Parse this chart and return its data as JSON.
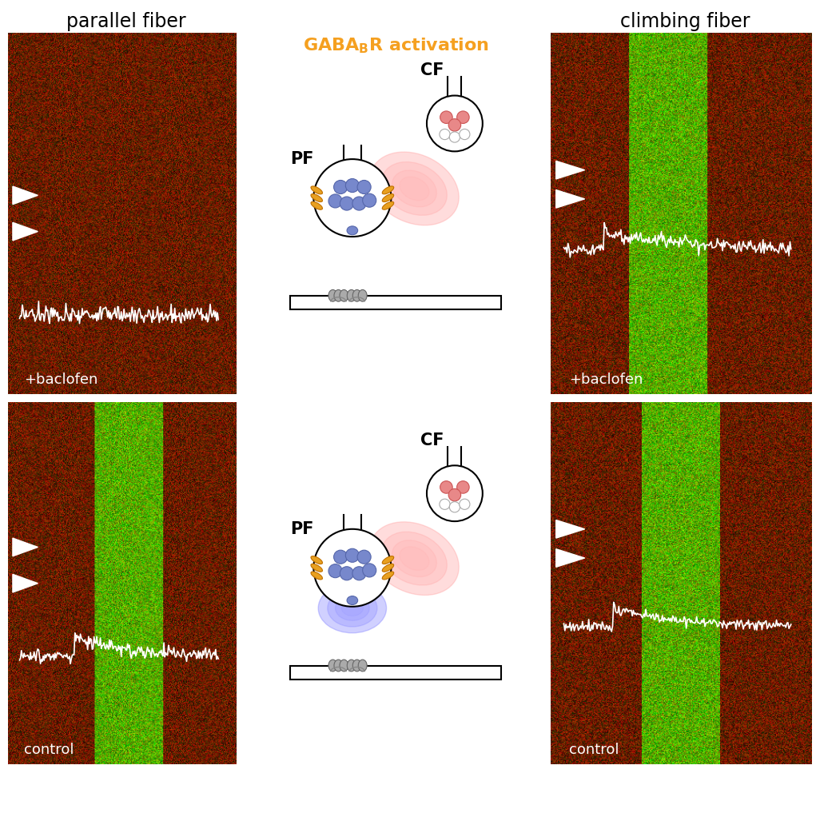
{
  "title_left": "parallel fiber",
  "title_right": "climbing fiber",
  "label_control": "control",
  "label_baclofen": "+baclofen",
  "text_color_white": "#ffffff",
  "text_color_black": "#000000",
  "text_color_orange": "#f5a020",
  "blue_circle_color": "#7788dd",
  "pink_circle_color": "#e88888",
  "orange_receptor_color": "#e8a020",
  "gray_receptor_color": "#999999",
  "bg_color": "#ffffff"
}
